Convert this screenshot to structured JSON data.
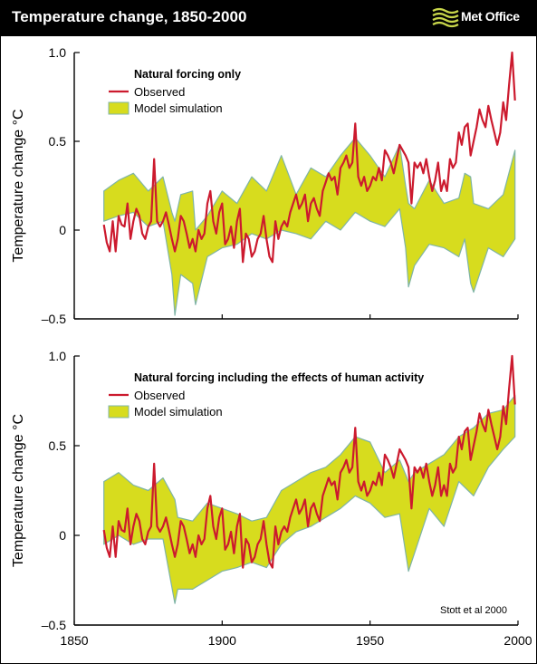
{
  "header": {
    "title": "Temperature change, 1850-2000",
    "logo_text": "Met Office",
    "background": "#000000"
  },
  "colors": {
    "observed": "#cc1a2e",
    "model_fill": "#d7dc1e",
    "model_edge": "#7fb4a6"
  },
  "chart_data": [
    {
      "type": "area",
      "title": "Natural forcing only",
      "ylabel": "Temperature change °C",
      "xlabel": "",
      "xlim": [
        1850,
        2000
      ],
      "ylim": [
        -0.5,
        1.0
      ],
      "yticks": [
        {
          "v": 1.0,
          "label": "1.0"
        },
        {
          "v": 0.5,
          "label": "0.5"
        },
        {
          "v": 0,
          "label": "0"
        },
        {
          "v": -0.5,
          "label": "–0.5"
        }
      ],
      "xticks": [
        {
          "v": 1850,
          "label": "1850"
        },
        {
          "v": 1900,
          "label": "1900"
        },
        {
          "v": 1950,
          "label": "1950"
        },
        {
          "v": 2000,
          "label": "2000"
        }
      ],
      "show_xtick_labels": false,
      "grid": false,
      "legend_position": "top-left",
      "annotation": "",
      "series": [
        {
          "name": "Observed",
          "type": "line",
          "x": [
            1860,
            1861,
            1862,
            1863,
            1864,
            1865,
            1866,
            1867,
            1868,
            1869,
            1870,
            1871,
            1872,
            1873,
            1874,
            1875,
            1876,
            1877,
            1878,
            1879,
            1880,
            1881,
            1882,
            1883,
            1884,
            1885,
            1886,
            1887,
            1888,
            1889,
            1890,
            1891,
            1892,
            1893,
            1894,
            1895,
            1896,
            1897,
            1898,
            1899,
            1900,
            1901,
            1902,
            1903,
            1904,
            1905,
            1906,
            1907,
            1908,
            1909,
            1910,
            1911,
            1912,
            1913,
            1914,
            1915,
            1916,
            1917,
            1918,
            1919,
            1920,
            1921,
            1922,
            1923,
            1924,
            1925,
            1926,
            1927,
            1928,
            1929,
            1930,
            1931,
            1932,
            1933,
            1934,
            1935,
            1936,
            1937,
            1938,
            1939,
            1940,
            1941,
            1942,
            1943,
            1944,
            1945,
            1946,
            1947,
            1948,
            1949,
            1950,
            1951,
            1952,
            1953,
            1954,
            1955,
            1956,
            1957,
            1958,
            1959,
            1960,
            1961,
            1962,
            1963,
            1964,
            1965,
            1966,
            1967,
            1968,
            1969,
            1970,
            1971,
            1972,
            1973,
            1974,
            1975,
            1976,
            1977,
            1978,
            1979,
            1980,
            1981,
            1982,
            1983,
            1984,
            1985,
            1986,
            1987,
            1988,
            1989,
            1990,
            1991,
            1992,
            1993,
            1994,
            1995,
            1996,
            1997,
            1998,
            1999
          ],
          "y": [
            0.03,
            -0.07,
            -0.12,
            0.05,
            -0.12,
            0.08,
            0.03,
            0.02,
            0.15,
            -0.05,
            0.05,
            0.12,
            0.08,
            -0.02,
            -0.05,
            0.02,
            0.05,
            0.4,
            0.05,
            0.02,
            0.05,
            0.1,
            0.03,
            -0.05,
            -0.12,
            -0.05,
            0.08,
            0.05,
            -0.02,
            -0.1,
            -0.05,
            -0.12,
            0.0,
            -0.05,
            -0.02,
            0.15,
            0.22,
            0.05,
            -0.02,
            0.1,
            0.15,
            -0.08,
            -0.05,
            0.02,
            -0.1,
            0.05,
            0.12,
            -0.18,
            -0.02,
            -0.05,
            -0.15,
            -0.12,
            -0.05,
            -0.02,
            0.08,
            -0.05,
            -0.15,
            -0.18,
            0.05,
            -0.05,
            0.02,
            0.05,
            0.02,
            0.1,
            0.15,
            0.2,
            0.12,
            0.15,
            0.2,
            0.05,
            0.15,
            0.18,
            0.12,
            0.08,
            0.22,
            0.27,
            0.32,
            0.28,
            0.3,
            0.2,
            0.35,
            0.38,
            0.42,
            0.35,
            0.38,
            0.6,
            0.3,
            0.25,
            0.3,
            0.22,
            0.25,
            0.3,
            0.28,
            0.35,
            0.28,
            0.45,
            0.42,
            0.38,
            0.32,
            0.4,
            0.48,
            0.45,
            0.42,
            0.38,
            0.15,
            0.38,
            0.35,
            0.38,
            0.32,
            0.4,
            0.3,
            0.22,
            0.28,
            0.38,
            0.22,
            0.28,
            0.22,
            0.4,
            0.35,
            0.38,
            0.55,
            0.48,
            0.58,
            0.6,
            0.42,
            0.5,
            0.58,
            0.68,
            0.62,
            0.58,
            0.7,
            0.62,
            0.55,
            0.48,
            0.55,
            0.72,
            0.62,
            0.82,
            1.0,
            0.73
          ]
        },
        {
          "name": "Model simulation",
          "type": "band",
          "x": [
            1860,
            1865,
            1870,
            1875,
            1880,
            1883,
            1884,
            1886,
            1890,
            1891,
            1895,
            1900,
            1905,
            1910,
            1915,
            1920,
            1925,
            1930,
            1935,
            1940,
            1945,
            1950,
            1955,
            1960,
            1962,
            1963,
            1965,
            1970,
            1975,
            1980,
            1982,
            1984,
            1985,
            1990,
            1995,
            1999
          ],
          "upper": [
            0.22,
            0.28,
            0.32,
            0.22,
            0.3,
            0.1,
            0.05,
            0.2,
            0.22,
            0.0,
            0.08,
            0.22,
            0.15,
            0.3,
            0.22,
            0.42,
            0.2,
            0.35,
            0.3,
            0.42,
            0.52,
            0.42,
            0.3,
            0.48,
            0.25,
            0.15,
            0.12,
            0.28,
            0.15,
            0.18,
            0.32,
            0.3,
            0.15,
            0.12,
            0.2,
            0.45
          ],
          "lower": [
            0.05,
            0.08,
            0.1,
            0.02,
            0.05,
            -0.25,
            -0.48,
            -0.25,
            -0.3,
            -0.42,
            -0.15,
            -0.1,
            -0.08,
            -0.02,
            -0.05,
            0.0,
            -0.02,
            -0.05,
            0.05,
            0.0,
            0.1,
            0.05,
            0.02,
            0.12,
            -0.1,
            -0.32,
            -0.2,
            -0.08,
            -0.1,
            -0.15,
            -0.05,
            -0.3,
            -0.35,
            -0.1,
            -0.15,
            -0.05
          ]
        }
      ]
    },
    {
      "type": "area",
      "title": "Natural forcing including the effects of human activity",
      "ylabel": "Temperature change °C",
      "xlabel": "",
      "xlim": [
        1850,
        2000
      ],
      "ylim": [
        -0.5,
        1.0
      ],
      "yticks": [
        {
          "v": 1.0,
          "label": "1.0"
        },
        {
          "v": 0.5,
          "label": "0.5"
        },
        {
          "v": 0,
          "label": "0"
        },
        {
          "v": -0.5,
          "label": "–0.5"
        }
      ],
      "xticks": [
        {
          "v": 1850,
          "label": "1850"
        },
        {
          "v": 1900,
          "label": "1900"
        },
        {
          "v": 1950,
          "label": "1950"
        },
        {
          "v": 2000,
          "label": "2000"
        }
      ],
      "show_xtick_labels": true,
      "grid": false,
      "legend_position": "top-left",
      "annotation": "Stott et al 2000",
      "series": [
        {
          "name": "Observed",
          "type": "line",
          "x": [
            1860,
            1861,
            1862,
            1863,
            1864,
            1865,
            1866,
            1867,
            1868,
            1869,
            1870,
            1871,
            1872,
            1873,
            1874,
            1875,
            1876,
            1877,
            1878,
            1879,
            1880,
            1881,
            1882,
            1883,
            1884,
            1885,
            1886,
            1887,
            1888,
            1889,
            1890,
            1891,
            1892,
            1893,
            1894,
            1895,
            1896,
            1897,
            1898,
            1899,
            1900,
            1901,
            1902,
            1903,
            1904,
            1905,
            1906,
            1907,
            1908,
            1909,
            1910,
            1911,
            1912,
            1913,
            1914,
            1915,
            1916,
            1917,
            1918,
            1919,
            1920,
            1921,
            1922,
            1923,
            1924,
            1925,
            1926,
            1927,
            1928,
            1929,
            1930,
            1931,
            1932,
            1933,
            1934,
            1935,
            1936,
            1937,
            1938,
            1939,
            1940,
            1941,
            1942,
            1943,
            1944,
            1945,
            1946,
            1947,
            1948,
            1949,
            1950,
            1951,
            1952,
            1953,
            1954,
            1955,
            1956,
            1957,
            1958,
            1959,
            1960,
            1961,
            1962,
            1963,
            1964,
            1965,
            1966,
            1967,
            1968,
            1969,
            1970,
            1971,
            1972,
            1973,
            1974,
            1975,
            1976,
            1977,
            1978,
            1979,
            1980,
            1981,
            1982,
            1983,
            1984,
            1985,
            1986,
            1987,
            1988,
            1989,
            1990,
            1991,
            1992,
            1993,
            1994,
            1995,
            1996,
            1997,
            1998,
            1999
          ],
          "y": [
            0.03,
            -0.07,
            -0.12,
            0.05,
            -0.12,
            0.08,
            0.03,
            0.02,
            0.15,
            -0.05,
            0.05,
            0.12,
            0.08,
            -0.02,
            -0.05,
            0.02,
            0.05,
            0.4,
            0.05,
            0.02,
            0.05,
            0.1,
            0.03,
            -0.05,
            -0.12,
            -0.05,
            0.08,
            0.05,
            -0.02,
            -0.1,
            -0.05,
            -0.12,
            0.0,
            -0.05,
            -0.02,
            0.15,
            0.22,
            0.05,
            -0.02,
            0.1,
            0.15,
            -0.08,
            -0.05,
            0.02,
            -0.1,
            0.05,
            0.12,
            -0.18,
            -0.02,
            -0.05,
            -0.15,
            -0.12,
            -0.05,
            -0.02,
            0.08,
            -0.05,
            -0.15,
            -0.18,
            0.05,
            -0.05,
            0.02,
            0.05,
            0.02,
            0.1,
            0.15,
            0.2,
            0.12,
            0.15,
            0.2,
            0.05,
            0.15,
            0.18,
            0.12,
            0.08,
            0.22,
            0.27,
            0.32,
            0.28,
            0.3,
            0.2,
            0.35,
            0.38,
            0.42,
            0.35,
            0.38,
            0.6,
            0.3,
            0.25,
            0.3,
            0.22,
            0.25,
            0.3,
            0.28,
            0.35,
            0.28,
            0.45,
            0.42,
            0.38,
            0.32,
            0.4,
            0.48,
            0.45,
            0.42,
            0.38,
            0.15,
            0.38,
            0.35,
            0.38,
            0.32,
            0.4,
            0.3,
            0.22,
            0.28,
            0.38,
            0.22,
            0.28,
            0.22,
            0.4,
            0.35,
            0.38,
            0.55,
            0.48,
            0.58,
            0.6,
            0.42,
            0.5,
            0.58,
            0.68,
            0.62,
            0.58,
            0.7,
            0.62,
            0.55,
            0.48,
            0.55,
            0.72,
            0.62,
            0.82,
            1.0,
            0.73
          ]
        },
        {
          "name": "Model simulation",
          "type": "band",
          "x": [
            1860,
            1865,
            1870,
            1875,
            1880,
            1884,
            1885,
            1890,
            1895,
            1900,
            1905,
            1910,
            1915,
            1920,
            1925,
            1930,
            1935,
            1940,
            1945,
            1950,
            1955,
            1960,
            1963,
            1965,
            1970,
            1975,
            1980,
            1985,
            1990,
            1995,
            1999
          ],
          "upper": [
            0.3,
            0.35,
            0.28,
            0.25,
            0.32,
            0.2,
            0.1,
            0.08,
            0.18,
            0.15,
            0.12,
            0.08,
            0.1,
            0.25,
            0.3,
            0.35,
            0.38,
            0.45,
            0.55,
            0.52,
            0.35,
            0.42,
            0.3,
            0.35,
            0.4,
            0.45,
            0.55,
            0.6,
            0.68,
            0.7,
            0.78
          ],
          "lower": [
            -0.05,
            0.0,
            -0.05,
            -0.02,
            -0.02,
            -0.38,
            -0.3,
            -0.3,
            -0.25,
            -0.2,
            -0.18,
            -0.15,
            -0.18,
            -0.05,
            0.02,
            0.05,
            0.1,
            0.15,
            0.22,
            0.18,
            0.1,
            0.12,
            -0.2,
            -0.1,
            0.15,
            0.05,
            0.3,
            0.22,
            0.38,
            0.48,
            0.55
          ]
        }
      ]
    }
  ]
}
